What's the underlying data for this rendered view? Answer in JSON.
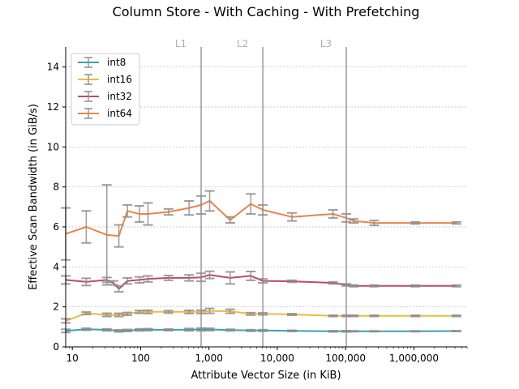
{
  "chart_data": {
    "type": "line",
    "title": "Column Store - With Caching - With Prefetching",
    "xlabel": "Attribute Vector Size (in KiB)",
    "ylabel": "Effective Scan Bandwidth (in GiB/s)",
    "x_scale": "log",
    "xlim": [
      8,
      6000000
    ],
    "ylim": [
      0,
      15
    ],
    "x_ticks": [
      {
        "value": 10,
        "label": "10"
      },
      {
        "value": 100,
        "label": "100"
      },
      {
        "value": 1000,
        "label": "1,000"
      },
      {
        "value": 10000,
        "label": "10,000"
      },
      {
        "value": 100000,
        "label": "100,000"
      },
      {
        "value": 1000000,
        "label": "1,000,000"
      }
    ],
    "y_ticks": [
      0,
      2,
      4,
      6,
      8,
      10,
      12,
      14
    ],
    "grid": "horizontal dashed",
    "legend_position": "top-left",
    "cache_levels": [
      {
        "name": "L1",
        "x": 768
      },
      {
        "name": "L2",
        "x": 6144
      },
      {
        "name": "L3",
        "x": 102400
      }
    ],
    "series": [
      {
        "name": "int8",
        "color": "#3a9fb0",
        "x": [
          8,
          16,
          32,
          48,
          64,
          96,
          128,
          256,
          512,
          768,
          1024,
          2048,
          4096,
          6144,
          16384,
          65536,
          102400,
          131072,
          262144,
          1048576,
          4194304
        ],
        "y": [
          0.8,
          0.88,
          0.85,
          0.8,
          0.82,
          0.85,
          0.86,
          0.85,
          0.86,
          0.87,
          0.87,
          0.84,
          0.82,
          0.82,
          0.8,
          0.78,
          0.78,
          0.78,
          0.78,
          0.78,
          0.79
        ],
        "err": [
          0.08,
          0.05,
          0.05,
          0.05,
          0.05,
          0.05,
          0.05,
          0.04,
          0.06,
          0.07,
          0.06,
          0.04,
          0.04,
          0.04,
          0.03,
          0.03,
          0.03,
          0.02,
          0.02,
          0.02,
          0.02
        ]
      },
      {
        "name": "int16",
        "color": "#f0b93e",
        "x": [
          8,
          16,
          32,
          48,
          64,
          96,
          128,
          256,
          512,
          768,
          1024,
          2048,
          4096,
          6144,
          16384,
          65536,
          102400,
          131072,
          262144,
          1048576,
          4194304
        ],
        "y": [
          1.3,
          1.68,
          1.6,
          1.6,
          1.65,
          1.75,
          1.75,
          1.75,
          1.75,
          1.75,
          1.8,
          1.78,
          1.65,
          1.65,
          1.62,
          1.55,
          1.55,
          1.55,
          1.55,
          1.55,
          1.55
        ],
        "err": [
          0.1,
          0.06,
          0.08,
          0.08,
          0.07,
          0.07,
          0.08,
          0.06,
          0.08,
          0.08,
          0.12,
          0.1,
          0.06,
          0.05,
          0.04,
          0.03,
          0.03,
          0.03,
          0.03,
          0.03,
          0.03
        ]
      },
      {
        "name": "int32",
        "color": "#c04870",
        "x": [
          8,
          16,
          32,
          40,
          48,
          64,
          96,
          128,
          256,
          512,
          768,
          1024,
          2048,
          4096,
          6144,
          16384,
          65536,
          102400,
          131072,
          262144,
          1048576,
          4194304
        ],
        "y": [
          3.35,
          3.25,
          3.35,
          3.2,
          2.9,
          3.3,
          3.35,
          3.4,
          3.45,
          3.45,
          3.48,
          3.6,
          3.45,
          3.55,
          3.3,
          3.28,
          3.2,
          3.1,
          3.05,
          3.05,
          3.05,
          3.05
        ],
        "err": [
          0.2,
          0.18,
          0.12,
          0.1,
          0.15,
          0.15,
          0.15,
          0.15,
          0.12,
          0.15,
          0.2,
          0.18,
          0.3,
          0.22,
          0.1,
          0.05,
          0.05,
          0.05,
          0.04,
          0.04,
          0.04,
          0.04
        ]
      },
      {
        "name": "int64",
        "color": "#e8854a",
        "x": [
          8,
          16,
          32,
          48,
          64,
          96,
          128,
          256,
          512,
          768,
          1024,
          2048,
          4096,
          6144,
          16384,
          65536,
          102400,
          131072,
          262144,
          1048576,
          4194304
        ],
        "y": [
          5.65,
          6.0,
          5.6,
          5.55,
          6.8,
          6.65,
          6.65,
          6.75,
          6.95,
          7.1,
          7.3,
          6.35,
          7.15,
          6.85,
          6.5,
          6.65,
          6.45,
          6.3,
          6.2,
          6.2,
          6.2
        ],
        "err": [
          1.3,
          0.8,
          2.5,
          0.55,
          0.3,
          0.4,
          0.55,
          0.15,
          0.35,
          0.45,
          0.5,
          0.15,
          0.5,
          0.25,
          0.2,
          0.2,
          0.2,
          0.1,
          0.12,
          0.05,
          0.05
        ]
      }
    ]
  }
}
